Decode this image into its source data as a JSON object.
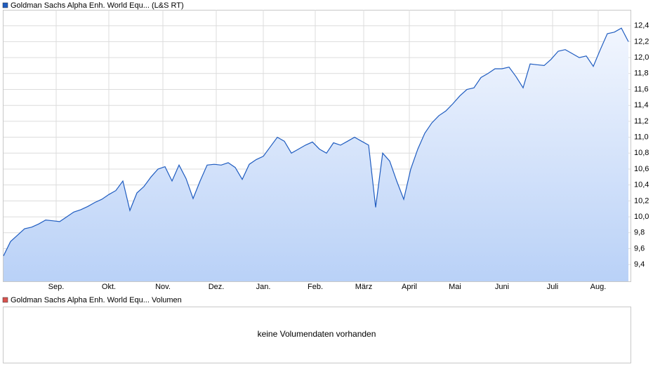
{
  "chart_data": [
    {
      "type": "area",
      "series": [
        {
          "name": "Goldman Sachs Alpha Enh. World Equ... (L&S RT)",
          "color": "#1f5cc0",
          "values": [
            9.51,
            9.69,
            9.77,
            9.85,
            9.87,
            9.91,
            9.96,
            9.95,
            9.94,
            10.0,
            10.06,
            10.09,
            10.13,
            10.18,
            10.22,
            10.28,
            10.33,
            10.45,
            10.08,
            10.3,
            10.38,
            10.5,
            10.6,
            10.63,
            10.45,
            10.65,
            10.48,
            10.23,
            10.45,
            10.65,
            10.66,
            10.65,
            10.68,
            10.62,
            10.47,
            10.66,
            10.72,
            10.76,
            10.88,
            11.0,
            10.95,
            10.8,
            10.85,
            10.9,
            10.94,
            10.85,
            10.8,
            10.93,
            10.9,
            10.95,
            11.0,
            10.95,
            10.9,
            10.12,
            10.8,
            10.7,
            10.45,
            10.22,
            10.6,
            10.85,
            11.05,
            11.18,
            11.27,
            11.33,
            11.42,
            11.52,
            11.6,
            11.62,
            11.75,
            11.8,
            11.86,
            11.86,
            11.88,
            11.76,
            11.62,
            11.92,
            11.91,
            11.9,
            11.98,
            12.08,
            12.1,
            12.05,
            12.0,
            12.02,
            11.89,
            12.1,
            12.3,
            12.32,
            12.37,
            12.2
          ]
        }
      ],
      "xlim": [
        0,
        89.3
      ],
      "xticks": [
        {
          "value": 7.5,
          "label": "Sep."
        },
        {
          "value": 15,
          "label": "Okt."
        },
        {
          "value": 22.7,
          "label": "Nov."
        },
        {
          "value": 30.3,
          "label": "Dez."
        },
        {
          "value": 37,
          "label": "Jan."
        },
        {
          "value": 44.4,
          "label": "Feb."
        },
        {
          "value": 51.3,
          "label": "März"
        },
        {
          "value": 57.8,
          "label": "April"
        },
        {
          "value": 64.3,
          "label": "Mai"
        },
        {
          "value": 71,
          "label": "Juni"
        },
        {
          "value": 78.2,
          "label": "Juli"
        },
        {
          "value": 84.7,
          "label": "Aug."
        }
      ],
      "ylim": [
        9.19,
        12.6
      ],
      "yticks": [
        {
          "value": 9.4,
          "label": "9,4"
        },
        {
          "value": 9.6,
          "label": "9,6"
        },
        {
          "value": 9.8,
          "label": "9,8"
        },
        {
          "value": 10.0,
          "label": "10,0"
        },
        {
          "value": 10.2,
          "label": "10,2"
        },
        {
          "value": 10.4,
          "label": "10,4"
        },
        {
          "value": 10.6,
          "label": "10,6"
        },
        {
          "value": 10.8,
          "label": "10,8"
        },
        {
          "value": 11.0,
          "label": "11,0"
        },
        {
          "value": 11.2,
          "label": "11,2"
        },
        {
          "value": 11.4,
          "label": "11,4"
        },
        {
          "value": 11.6,
          "label": "11,6"
        },
        {
          "value": 11.8,
          "label": "11,8"
        },
        {
          "value": 12.0,
          "label": "12,0"
        },
        {
          "value": 12.2,
          "label": "12,2"
        },
        {
          "value": 12.4,
          "label": "12,4"
        }
      ],
      "grid": true
    },
    {
      "type": "bar",
      "series": [
        {
          "name": "Goldman Sachs Alpha Enh. World Equ... Volumen",
          "color": "#d9534f",
          "values": []
        }
      ],
      "message": "keine Volumendaten vorhanden"
    }
  ]
}
